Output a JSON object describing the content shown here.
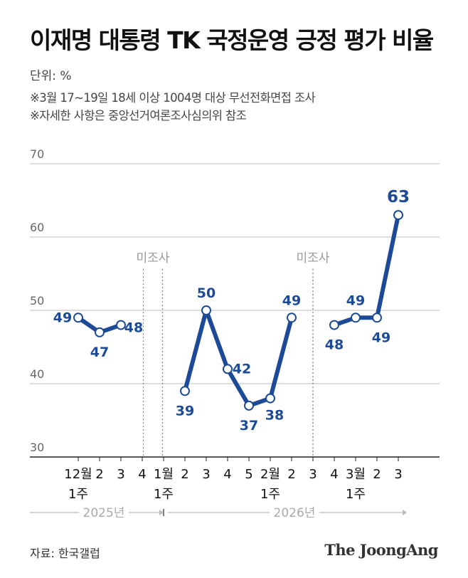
{
  "title": "이재명 대통령 TK 국정운영 긍정 평가 비율",
  "unit_label": "단위: %",
  "notes": [
    "※3월 17~19일 18세 이상 1004명 대상 무선전화면접 조사",
    "※자세한 사항은 중앙선거여론조사심의위 참조"
  ],
  "source": "자료: 한국갤럽",
  "brand": "The JoongAng",
  "chart_data": {
    "type": "line",
    "ylim": [
      30,
      70
    ],
    "yticks": [
      30,
      40,
      50,
      60,
      70
    ],
    "grid": true,
    "line_color": "#1d4a96",
    "categories": [
      {
        "label": "12월",
        "sub": "1주"
      },
      {
        "label": "2",
        "sub": ""
      },
      {
        "label": "3",
        "sub": ""
      },
      {
        "label": "4",
        "sub": ""
      },
      {
        "label": "1월",
        "sub": "1주"
      },
      {
        "label": "2",
        "sub": ""
      },
      {
        "label": "3",
        "sub": ""
      },
      {
        "label": "4",
        "sub": ""
      },
      {
        "label": "5",
        "sub": ""
      },
      {
        "label": "2월",
        "sub": "1주"
      },
      {
        "label": "2",
        "sub": ""
      },
      {
        "label": "3",
        "sub": ""
      },
      {
        "label": "4",
        "sub": ""
      },
      {
        "label": "3월",
        "sub": "1주"
      },
      {
        "label": "2",
        "sub": ""
      },
      {
        "label": "3",
        "sub": ""
      }
    ],
    "series": [
      {
        "segments": [
          [
            [
              0,
              49
            ],
            [
              1,
              47
            ],
            [
              2,
              48
            ]
          ],
          [
            [
              5,
              39
            ],
            [
              6,
              50
            ],
            [
              7,
              42
            ],
            [
              8,
              37
            ],
            [
              9,
              38
            ],
            [
              10,
              49
            ]
          ],
          [
            [
              12,
              48
            ],
            [
              13,
              49
            ],
            [
              14,
              49
            ],
            [
              15,
              63
            ]
          ]
        ]
      }
    ],
    "gaps": [
      {
        "between": [
          3,
          4
        ],
        "label": "미조사"
      },
      {
        "between": [
          11,
          11
        ],
        "label": "미조사"
      }
    ],
    "years": [
      {
        "label": "2025년"
      },
      {
        "label": "2026년"
      }
    ]
  }
}
